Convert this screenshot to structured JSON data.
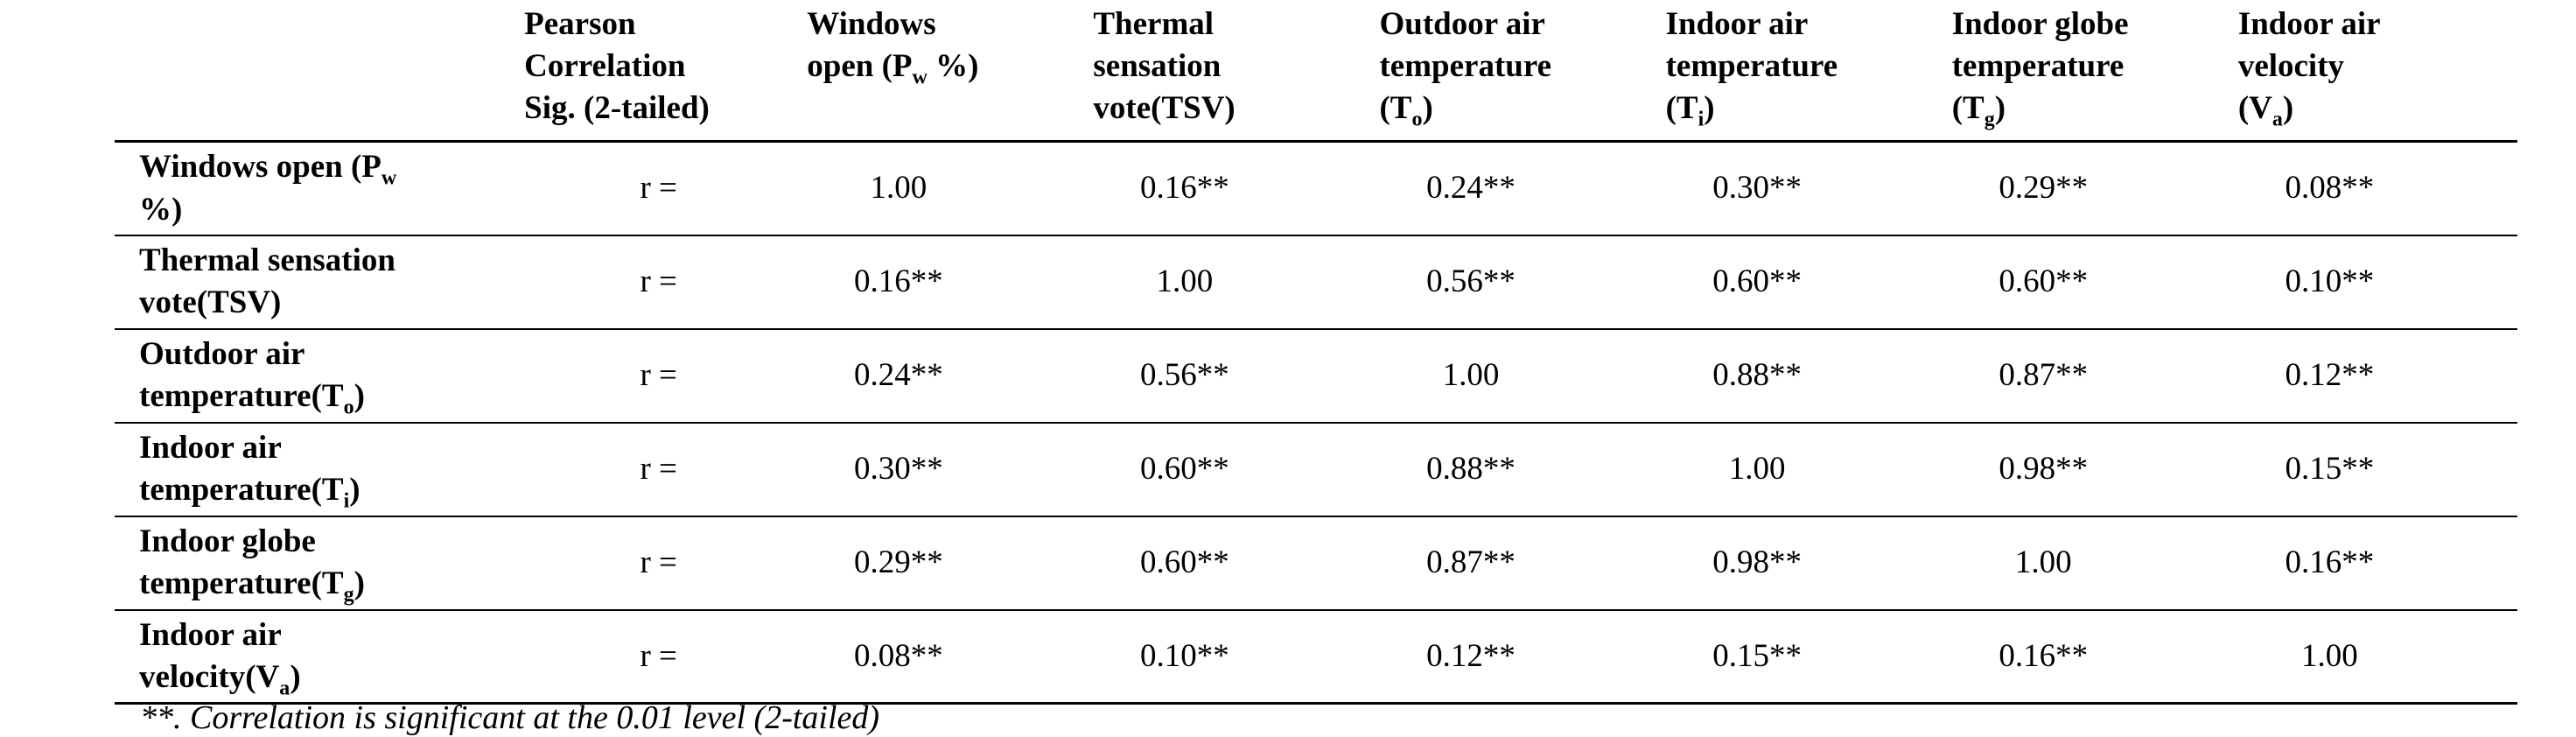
{
  "table": {
    "r_label": "r =",
    "footnote": "**. Correlation is significant at the 0.01 level (2-tailed)",
    "stat_header": [
      [
        {
          "t": "Pearson"
        }
      ],
      [
        {
          "t": "Correlation"
        }
      ],
      [
        {
          "t": "Sig. (2-tailed)"
        }
      ]
    ],
    "col_headers": [
      [
        [
          {
            "t": "Windows"
          }
        ],
        [
          {
            "t": "open (P"
          },
          {
            "sub": "w"
          },
          {
            "t": " %)"
          }
        ]
      ],
      [
        [
          {
            "t": "Thermal"
          }
        ],
        [
          {
            "t": "sensation"
          }
        ],
        [
          {
            "t": "vote(TSV)"
          }
        ]
      ],
      [
        [
          {
            "t": "Outdoor air"
          }
        ],
        [
          {
            "t": "temperature"
          }
        ],
        [
          {
            "t": "(T"
          },
          {
            "sub": "o"
          },
          {
            "t": ")"
          }
        ]
      ],
      [
        [
          {
            "t": "Indoor air"
          }
        ],
        [
          {
            "t": "temperature"
          }
        ],
        [
          {
            "t": "(T"
          },
          {
            "sub": "i"
          },
          {
            "t": ")"
          }
        ]
      ],
      [
        [
          {
            "t": "Indoor globe"
          }
        ],
        [
          {
            "t": "temperature"
          }
        ],
        [
          {
            "t": "(T"
          },
          {
            "sub": "g"
          },
          {
            "t": ")"
          }
        ]
      ],
      [
        [
          {
            "t": "Indoor air"
          }
        ],
        [
          {
            "t": "velocity"
          }
        ],
        [
          {
            "t": "(V"
          },
          {
            "sub": "a"
          },
          {
            "t": ")"
          }
        ]
      ]
    ],
    "rows": [
      {
        "label": [
          [
            {
              "t": "Windows open (P"
            },
            {
              "sub": "w"
            }
          ],
          [
            {
              "t": "%)"
            }
          ]
        ],
        "values": [
          "1.00",
          "0.16**",
          "0.24**",
          "0.30**",
          "0.29**",
          "0.08**"
        ]
      },
      {
        "label": [
          [
            {
              "t": "Thermal sensation"
            }
          ],
          [
            {
              "t": "vote(TSV)"
            }
          ]
        ],
        "values": [
          "0.16**",
          "1.00",
          "0.56**",
          "0.60**",
          "0.60**",
          "0.10**"
        ]
      },
      {
        "label": [
          [
            {
              "t": "Outdoor air"
            }
          ],
          [
            {
              "t": "temperature(T"
            },
            {
              "sub": "o"
            },
            {
              "t": ")"
            }
          ]
        ],
        "values": [
          "0.24**",
          "0.56**",
          "1.00",
          "0.88**",
          "0.87**",
          "0.12**"
        ]
      },
      {
        "label": [
          [
            {
              "t": "Indoor air"
            }
          ],
          [
            {
              "t": "temperature(T"
            },
            {
              "sub": "i"
            },
            {
              "t": ")"
            }
          ]
        ],
        "values": [
          "0.30**",
          "0.60**",
          "0.88**",
          "1.00",
          "0.98**",
          "0.15**"
        ]
      },
      {
        "label": [
          [
            {
              "t": "Indoor globe"
            }
          ],
          [
            {
              "t": "temperature(T"
            },
            {
              "sub": "g"
            },
            {
              "t": ")"
            }
          ]
        ],
        "values": [
          "0.29**",
          "0.60**",
          "0.87**",
          "0.98**",
          "1.00",
          "0.16**"
        ]
      },
      {
        "label": [
          [
            {
              "t": "Indoor air"
            }
          ],
          [
            {
              "t": "velocity(V"
            },
            {
              "sub": "a"
            },
            {
              "t": ")"
            }
          ]
        ],
        "values": [
          "0.08**",
          "0.10**",
          "0.12**",
          "0.15**",
          "0.16**",
          "1.00"
        ]
      }
    ]
  }
}
